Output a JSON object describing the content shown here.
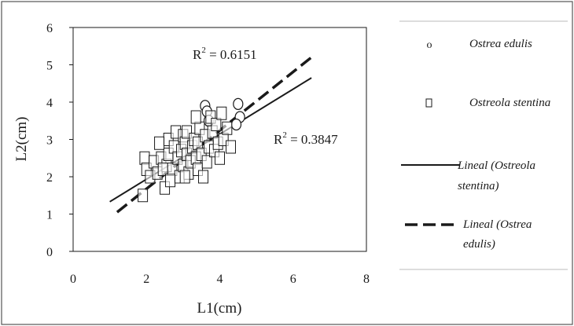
{
  "chart_data": {
    "type": "scatter",
    "xlabel": "L1(cm)",
    "ylabel": "L2(cm)",
    "xlim": [
      0,
      8
    ],
    "ylim": [
      0,
      6
    ],
    "x_ticks": [
      "0",
      "2",
      "4",
      "6",
      "8"
    ],
    "y_ticks": [
      "0",
      "1",
      "2",
      "3",
      "4",
      "5",
      "6"
    ],
    "grid": false,
    "legend_position": "right",
    "annotations": [
      {
        "id": "r2_edulis",
        "text_main": "R",
        "text_sup": "2",
        "text_rest": " = 0.6151"
      },
      {
        "id": "r2_stentina",
        "text_main": "R",
        "text_sup": "2",
        "text_rest": " = 0.3847"
      }
    ],
    "series": [
      {
        "name": "Ostrea edulis",
        "kind": "scatter",
        "marker": "circle",
        "points": [
          [
            3.6,
            3.9
          ],
          [
            3.65,
            3.75
          ],
          [
            4.5,
            3.95
          ],
          [
            4.55,
            3.6
          ],
          [
            3.7,
            3.5
          ],
          [
            4.45,
            3.4
          ]
        ]
      },
      {
        "name": "Ostreola stentina",
        "kind": "scatter",
        "marker": "square",
        "points": [
          [
            1.9,
            1.5
          ],
          [
            1.95,
            2.5
          ],
          [
            2.0,
            2.2
          ],
          [
            2.1,
            2.0
          ],
          [
            2.2,
            2.4
          ],
          [
            2.3,
            2.1
          ],
          [
            2.4,
            2.5
          ],
          [
            2.5,
            1.7
          ],
          [
            2.55,
            2.3
          ],
          [
            2.6,
            2.6
          ],
          [
            2.6,
            3.0
          ],
          [
            2.7,
            2.2
          ],
          [
            2.75,
            2.8
          ],
          [
            2.8,
            3.2
          ],
          [
            2.85,
            2.5
          ],
          [
            2.9,
            2.0
          ],
          [
            2.95,
            2.7
          ],
          [
            3.0,
            3.1
          ],
          [
            3.0,
            2.3
          ],
          [
            3.05,
            2.9
          ],
          [
            3.1,
            2.6
          ],
          [
            3.1,
            3.2
          ],
          [
            3.15,
            2.1
          ],
          [
            3.2,
            2.4
          ],
          [
            3.25,
            2.8
          ],
          [
            3.3,
            3.0
          ],
          [
            3.35,
            2.5
          ],
          [
            3.4,
            2.2
          ],
          [
            3.4,
            2.9
          ],
          [
            3.45,
            3.3
          ],
          [
            3.5,
            2.6
          ],
          [
            3.55,
            2.0
          ],
          [
            3.6,
            3.1
          ],
          [
            3.65,
            2.4
          ],
          [
            3.7,
            2.8
          ],
          [
            3.75,
            3.6
          ],
          [
            3.8,
            3.2
          ],
          [
            3.85,
            2.7
          ],
          [
            3.9,
            3.4
          ],
          [
            3.95,
            2.9
          ],
          [
            4.0,
            2.5
          ],
          [
            4.05,
            3.7
          ],
          [
            4.1,
            3.0
          ],
          [
            4.2,
            3.3
          ],
          [
            4.3,
            2.8
          ],
          [
            2.35,
            2.9
          ],
          [
            2.45,
            2.2
          ],
          [
            2.65,
            1.9
          ],
          [
            3.35,
            3.6
          ],
          [
            3.05,
            2.0
          ]
        ]
      },
      {
        "name": "Lineal (Ostreola stentina)",
        "legend_lines": [
          "Lineal (Ostreola",
          "stentina)"
        ],
        "kind": "trendline",
        "style": "solid",
        "x": [
          1.0,
          6.5
        ],
        "y": [
          1.33,
          4.65
        ]
      },
      {
        "name": "Lineal (Ostrea edulis)",
        "legend_lines": [
          "Lineal (Ostrea",
          "edulis)"
        ],
        "kind": "trendline",
        "style": "dashed",
        "x": [
          1.2,
          6.5
        ],
        "y": [
          1.05,
          5.2
        ]
      }
    ]
  },
  "colors": {
    "background": "#ffffff",
    "ink": "#1a1a1a",
    "frame": "#555555",
    "legend_rule": "#bbbbbb"
  }
}
